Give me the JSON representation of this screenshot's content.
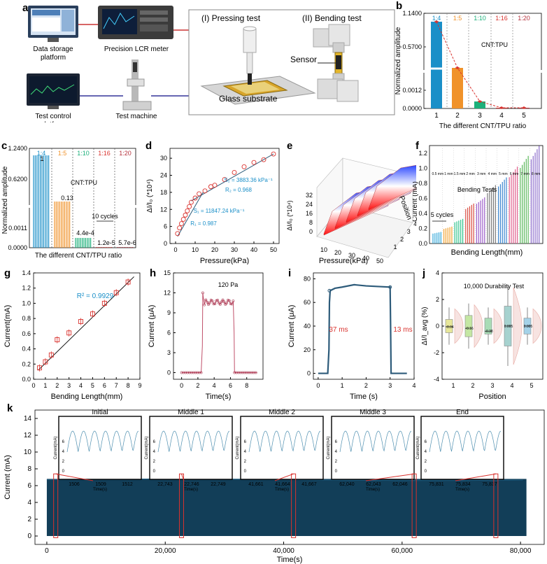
{
  "panel_labels": {
    "a": "a",
    "b": "b",
    "c": "c",
    "d": "d",
    "e": "e",
    "f": "f",
    "g": "g",
    "h": "h",
    "i": "i",
    "j": "j",
    "k": "k"
  },
  "panel_a": {
    "data_storage": "Data storage\nplatform",
    "lcr": "Precision LCR meter",
    "test_control": "Test control\nplatform",
    "test_machine": "Test machine",
    "pressing": "(I) Pressing test",
    "bending": "(II) Bending test",
    "sensor": "Sensor",
    "glass": "Glass substrate"
  },
  "colors": {
    "blue": "#1a8fc8",
    "orange": "#f0922a",
    "green": "#1bb07a",
    "red": "#d9322e",
    "maroon": "#b5303b",
    "dark": "#123e58",
    "navy": "#2d5b7a"
  },
  "chart_data": [
    {
      "id": "b",
      "type": "bar",
      "title": "CNT:TPU",
      "categories": [
        "1",
        "2",
        "3",
        "4",
        "5"
      ],
      "ratios": [
        "1:4",
        "1:5",
        "1:10",
        "1:16",
        "1:20"
      ],
      "values": [
        1.0,
        0.13,
        0.0004,
        1.2e-05,
        5.7e-06
      ],
      "yticks": [
        "0.0000",
        "0.0012",
        "0.5700",
        "1.1400"
      ],
      "xlabel": "The different CNT/TPU ratio",
      "ylabel": "Normalized amplitude"
    },
    {
      "id": "c",
      "type": "bar",
      "title": "CNT:TPU",
      "ratios": [
        "1:4",
        "1:5",
        "1:10",
        "1:16",
        "1:20"
      ],
      "value_labels": [
        "1",
        "0.13",
        "4.4e-4",
        "1.2e-5",
        "5.7e-6"
      ],
      "cycles_label": "10 cycles",
      "yticks": [
        "0.0000",
        "0.0011",
        "0.6200",
        "1.2400"
      ],
      "xlabel": "The different CNT/TPU ratio",
      "ylabel": "Normalized amplitude"
    },
    {
      "id": "d",
      "type": "scatter",
      "x": [
        1,
        2,
        3,
        4,
        5,
        6,
        7,
        8,
        10,
        12,
        15,
        18,
        20,
        25,
        30,
        35,
        40,
        45,
        50
      ],
      "y": [
        3.5,
        5.5,
        7,
        8.5,
        10,
        11.5,
        13,
        14.5,
        16,
        17.5,
        18.5,
        20,
        20.5,
        22.5,
        25,
        27,
        28.5,
        29.5,
        31.5
      ],
      "xlim": [
        0,
        50
      ],
      "ylim": [
        0,
        32
      ],
      "xticks": [
        "0",
        "10",
        "20",
        "30",
        "40",
        "50"
      ],
      "yticks": [
        "0",
        "6",
        "12",
        "18",
        "24",
        "30"
      ],
      "xlabel": "Pressure(kPa)",
      "ylabel": "ΔI/I₀ (*10⁴)",
      "ann_s2": "S₂ = 3883.36 kPa⁻¹",
      "ann_r2": "R₂ = 0.968",
      "ann_s1": "S₁ = 11847.24 kPa⁻¹",
      "ann_r1": "R₁ = 0.987"
    },
    {
      "id": "e",
      "type": "area",
      "xticks": [
        "10",
        "20",
        "30",
        "40",
        "50"
      ],
      "yticks": [
        "0",
        "8",
        "16",
        "24",
        "32"
      ],
      "positions": [
        "1",
        "2",
        "3",
        "4",
        "5"
      ],
      "xlabel": "Pressure(kPa)",
      "ylabel": "ΔI/I₀ (*10⁴)",
      "zlabel": "Position"
    },
    {
      "id": "f",
      "type": "bar",
      "lengths": [
        "0.5 mm",
        "1 mm",
        "1.5 mm",
        "2 mm",
        "3 mm",
        "4 mm",
        "5 mm",
        "6 mm",
        "7 mm",
        "8 mm"
      ],
      "values": [
        0.15,
        0.22,
        0.32,
        0.52,
        0.6,
        0.76,
        0.86,
        1.0,
        1.14,
        1.27
      ],
      "yticks": [
        "0.0",
        "0.2",
        "0.4",
        "0.6",
        "0.8",
        "1.0",
        "1.2"
      ],
      "cycles_label": "5 cycles",
      "title": "Bending Tests",
      "xlabel": "Bending Length(mm)",
      "ylabel": "Current (mA)"
    },
    {
      "id": "g",
      "type": "scatter",
      "x": [
        0.5,
        1,
        1.5,
        2,
        3,
        4,
        5,
        6,
        7,
        8
      ],
      "y": [
        0.15,
        0.23,
        0.32,
        0.52,
        0.61,
        0.76,
        0.86,
        1.0,
        1.14,
        1.28
      ],
      "xlim": [
        0,
        9
      ],
      "ylim": [
        0,
        1.4
      ],
      "xticks": [
        "0",
        "1",
        "2",
        "3",
        "4",
        "5",
        "6",
        "7",
        "8",
        "9"
      ],
      "yticks": [
        "0.0",
        "0.2",
        "0.4",
        "0.6",
        "0.8",
        "1.0",
        "1.2",
        "1.4"
      ],
      "r2": "R² = 0.9929",
      "xlabel": "Bending Length(mm)",
      "ylabel": "Current(mA)"
    },
    {
      "id": "h",
      "type": "line",
      "xlim": [
        -1,
        10
      ],
      "ylim": [
        -1,
        15
      ],
      "xticks": [
        "0",
        "2",
        "4",
        "6",
        "8"
      ],
      "yticks": [
        "0",
        "3",
        "6",
        "9",
        "12",
        "15"
      ],
      "title": "120 Pa",
      "xlabel": "Time(s)",
      "ylabel": "Current (μA)"
    },
    {
      "id": "i",
      "type": "line",
      "xlim": [
        -0.2,
        4
      ],
      "ylim": [
        -5,
        85
      ],
      "xticks": [
        "0",
        "1",
        "2",
        "3",
        "4"
      ],
      "yticks": [
        "0",
        "20",
        "40",
        "60",
        "80"
      ],
      "rise": "37 ms",
      "fall": "13 ms",
      "xlabel": "Time (s)",
      "ylabel": "Current (μA)"
    },
    {
      "id": "j",
      "type": "scatter",
      "categories": [
        "1",
        "2",
        "3",
        "4",
        "5"
      ],
      "means": [
        -0.04,
        -0.16,
        -0.38,
        0.005,
        0.005
      ],
      "mean_labels": [
        "-0.04",
        "-0.16",
        "-0.38",
        "0.005",
        "0.005"
      ],
      "ylim": [
        -4,
        4
      ],
      "yticks": [
        "-4",
        "-2",
        "0",
        "2",
        "4"
      ],
      "title": "10,000 Durability Test",
      "xlabel": "Position",
      "ylabel": "ΔI/I_avg (%)"
    },
    {
      "id": "k",
      "type": "area",
      "xlim": [
        -2000,
        84000
      ],
      "ylim": [
        -1,
        15
      ],
      "xticks": [
        "0",
        "20,000",
        "40,000",
        "60,000",
        "80,000"
      ],
      "yticks": [
        "0",
        "2",
        "4",
        "6",
        "8",
        "10",
        "12",
        "14"
      ],
      "xlabel": "Time(s)",
      "ylabel": "Current (mA)",
      "insets": [
        {
          "title": "Initial",
          "ticks": [
            "1506",
            "1509",
            "1512"
          ]
        },
        {
          "title": "Middle 1",
          "ticks": [
            "22,743",
            "22,746",
            "22,749"
          ]
        },
        {
          "title": "Middle 2",
          "ticks": [
            "41,661",
            "41,664",
            "41,667"
          ]
        },
        {
          "title": "Middle 3",
          "ticks": [
            "62,040",
            "62,043",
            "62,046"
          ]
        },
        {
          "title": "End",
          "ticks": [
            "75,831",
            "75,834",
            "75,837"
          ]
        }
      ],
      "inset_yticks": [
        "0",
        "2",
        "4",
        "6"
      ],
      "inset_xlabel": "Time(s)",
      "inset_ylabel": "Current(mA)"
    }
  ]
}
